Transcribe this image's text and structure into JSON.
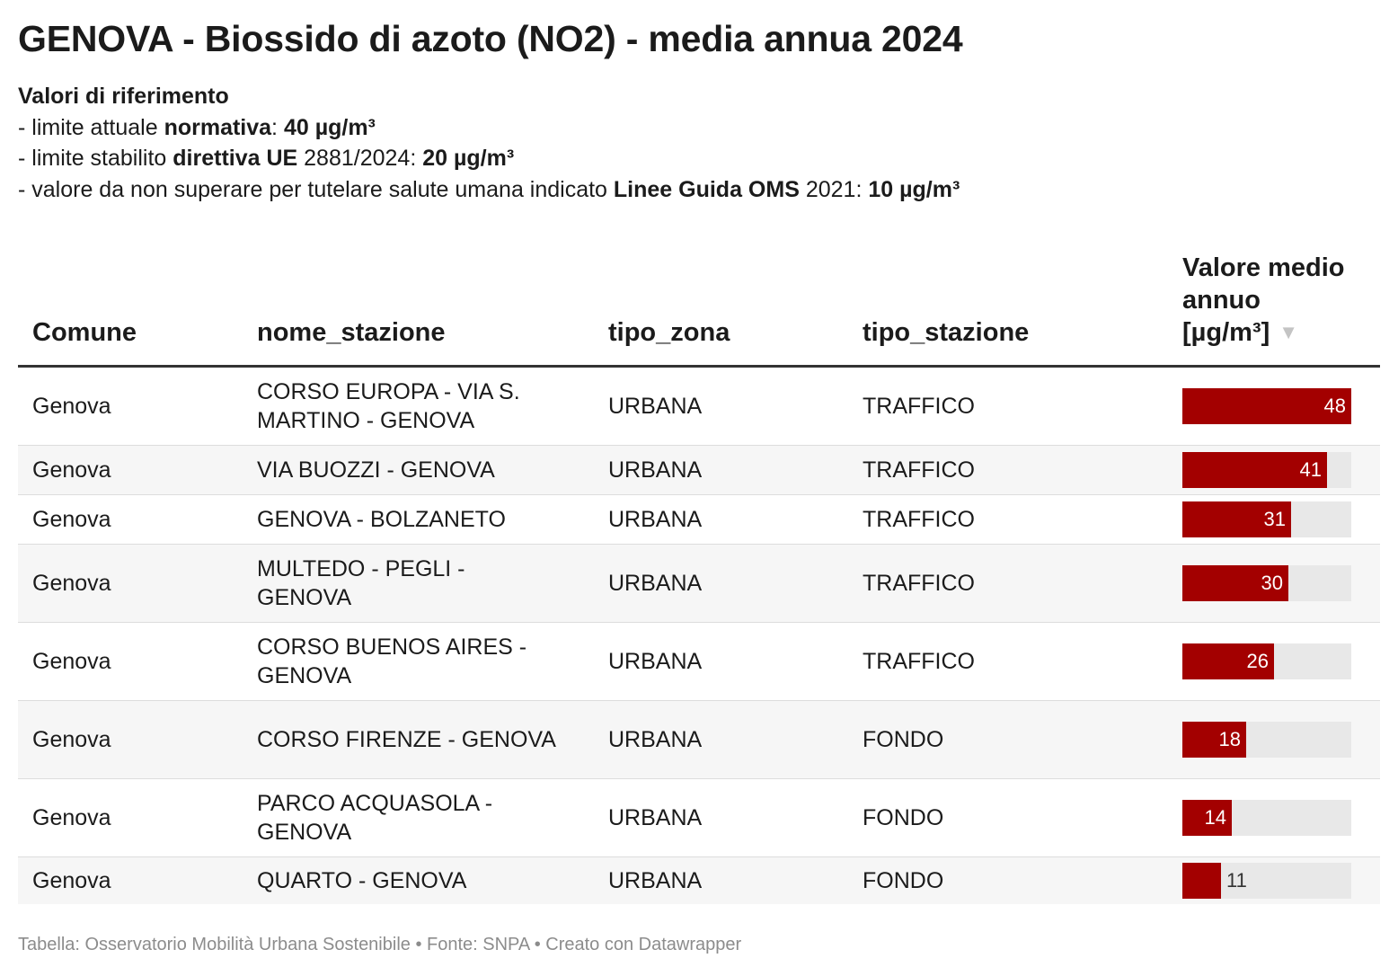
{
  "title": "GENOVA - Biossido di azoto (NO2) - media annua 2024",
  "reference": {
    "heading": "Valori di riferimento",
    "lines": [
      {
        "pre": "- limite attuale ",
        "bold": "normativa",
        "mid": ": ",
        "bold2": "40 µg/m³",
        "post": ""
      },
      {
        "pre": "- limite stabilito ",
        "bold": "direttiva UE",
        "mid": " 2881/2024: ",
        "bold2": "20 µg/m³",
        "post": ""
      },
      {
        "pre": "- valore da non superare per tutelare salute umana indicato ",
        "bold": "Linee Guida OMS",
        "mid": " 2021: ",
        "bold2": "10 µg/m³",
        "post": ""
      }
    ]
  },
  "columns": {
    "comune": "Comune",
    "nome_stazione": "nome_stazione",
    "tipo_zona": "tipo_zona",
    "tipo_stazione": "tipo_stazione",
    "valore": "Valore medio annuo [µg/m³]"
  },
  "sort_icon": "sort-down-icon",
  "colors": {
    "bar": "#a30000",
    "bar_background": "#e8e8e8"
  },
  "chart_data": {
    "type": "table",
    "max_value": 48,
    "rows": [
      {
        "comune": "Genova",
        "nome_stazione": "CORSO EUROPA - VIA S. MARTINO - GENOVA",
        "tipo_zona": "URBANA",
        "tipo_stazione": "TRAFFICO",
        "value": 48
      },
      {
        "comune": "Genova",
        "nome_stazione": "VIA BUOZZI - GENOVA",
        "tipo_zona": "URBANA",
        "tipo_stazione": "TRAFFICO",
        "value": 41
      },
      {
        "comune": "Genova",
        "nome_stazione": "GENOVA - BOLZANETO",
        "tipo_zona": "URBANA",
        "tipo_stazione": "TRAFFICO",
        "value": 31
      },
      {
        "comune": "Genova",
        "nome_stazione": "MULTEDO - PEGLI - GENOVA",
        "tipo_zona": "URBANA",
        "tipo_stazione": "TRAFFICO",
        "value": 30
      },
      {
        "comune": "Genova",
        "nome_stazione": "CORSO BUENOS AIRES - GENOVA",
        "tipo_zona": "URBANA",
        "tipo_stazione": "TRAFFICO",
        "value": 26
      },
      {
        "comune": "Genova",
        "nome_stazione": "CORSO FIRENZE - GENOVA",
        "tipo_zona": "URBANA",
        "tipo_stazione": "FONDO",
        "value": 18
      },
      {
        "comune": "Genova",
        "nome_stazione": "PARCO ACQUASOLA - GENOVA",
        "tipo_zona": "URBANA",
        "tipo_stazione": "FONDO",
        "value": 14
      },
      {
        "comune": "Genova",
        "nome_stazione": "QUARTO - GENOVA",
        "tipo_zona": "URBANA",
        "tipo_stazione": "FONDO",
        "value": 11
      }
    ]
  },
  "footer": "Tabella: Osservatorio Mobilità Urbana Sostenibile • Fonte: SNPA • Creato con Datawrapper"
}
